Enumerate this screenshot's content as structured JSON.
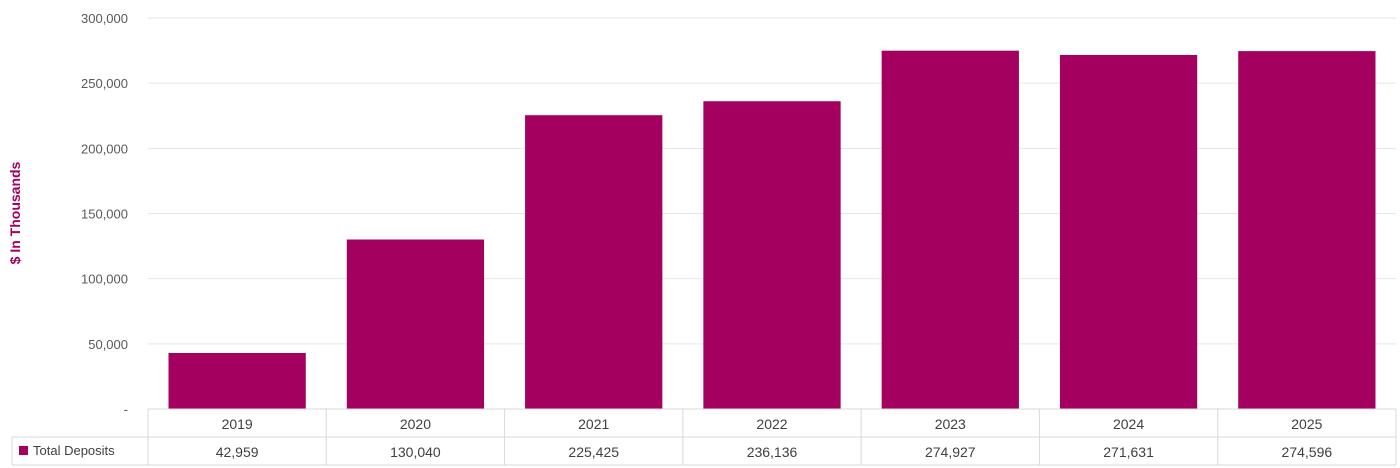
{
  "chart_data": {
    "type": "bar",
    "ylabel": "$ In Thousands",
    "categories": [
      "2019",
      "2020",
      "2021",
      "2022",
      "2023",
      "2024",
      "2025"
    ],
    "series": [
      {
        "name": "Total Deposits",
        "values": [
          42959,
          130040,
          225425,
          236136,
          274927,
          271631,
          274596
        ],
        "value_labels": [
          "42,959",
          "130,040",
          "225,425",
          "236,136",
          "274,927",
          "271,631",
          "274,596"
        ],
        "color": "#A3005F"
      }
    ],
    "ylim": [
      0,
      300000
    ],
    "yticks": [
      0,
      50000,
      100000,
      150000,
      200000,
      250000,
      300000
    ],
    "ytick_labels": [
      "-",
      "50,000",
      "100,000",
      "150,000",
      "200,000",
      "250,000",
      "300,000"
    ],
    "grid": true,
    "data_table": true,
    "legend_position": "bottom-left (in data table)",
    "colors": {
      "bar": "#A3005F",
      "axis_label": "#A3005F",
      "grid": "#e6e6e6"
    }
  }
}
